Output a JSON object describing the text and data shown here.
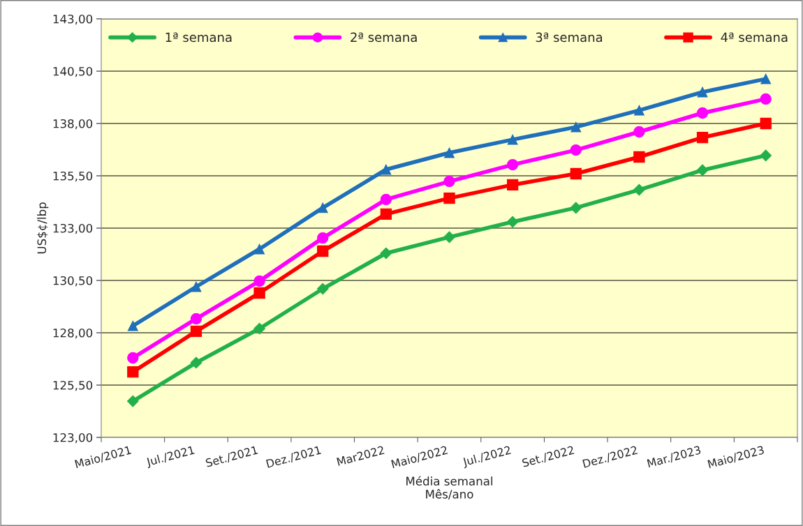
{
  "chart_data": {
    "type": "line",
    "xlabel": "Média semanal\nMês/ano",
    "ylabel": "US$¢/lbp",
    "categories": [
      "Maio/2021",
      "Jul./2021",
      "Set./2021",
      "Dez./2021",
      "Mar2022",
      "Maio/2022",
      "Jul./2022",
      "Set./2022",
      "Dez./2022",
      "Mar./2023",
      "Maio/2023"
    ],
    "series": [
      {
        "name": "1ª semana",
        "color": "#22b04a",
        "marker": "diamond",
        "values": [
          124.73,
          126.57,
          128.2,
          130.1,
          131.8,
          132.57,
          133.3,
          133.97,
          134.83,
          135.77,
          136.47
        ]
      },
      {
        "name": "2ª semana",
        "color": "#ff00ff",
        "marker": "circle",
        "values": [
          126.8,
          128.67,
          130.47,
          132.53,
          134.37,
          135.23,
          136.03,
          136.73,
          137.6,
          138.5,
          139.17
        ]
      },
      {
        "name": "3ª semana",
        "color": "#1f6fba",
        "marker": "triangle",
        "values": [
          128.33,
          130.2,
          132.0,
          133.97,
          135.8,
          136.6,
          137.23,
          137.83,
          138.63,
          139.5,
          140.13
        ]
      },
      {
        "name": "4ª semana",
        "color": "#ff0000",
        "marker": "square",
        "values": [
          126.13,
          128.07,
          129.9,
          131.9,
          133.67,
          134.43,
          135.07,
          135.6,
          136.4,
          137.33,
          138.0
        ]
      }
    ],
    "ylim": [
      123,
      143
    ],
    "yticks": [
      {
        "value": 123,
        "label": "123,00"
      },
      {
        "value": 125.5,
        "label": "125,50"
      },
      {
        "value": 128,
        "label": "128,00"
      },
      {
        "value": 130.5,
        "label": "130,50"
      },
      {
        "value": 133,
        "label": "133,00"
      },
      {
        "value": 135.5,
        "label": "135,50"
      },
      {
        "value": 138,
        "label": "138,00"
      },
      {
        "value": 140.5,
        "label": "140,50"
      },
      {
        "value": 143,
        "label": "143,00"
      }
    ],
    "grid": "y",
    "legend": "top",
    "line_style": "solid"
  }
}
